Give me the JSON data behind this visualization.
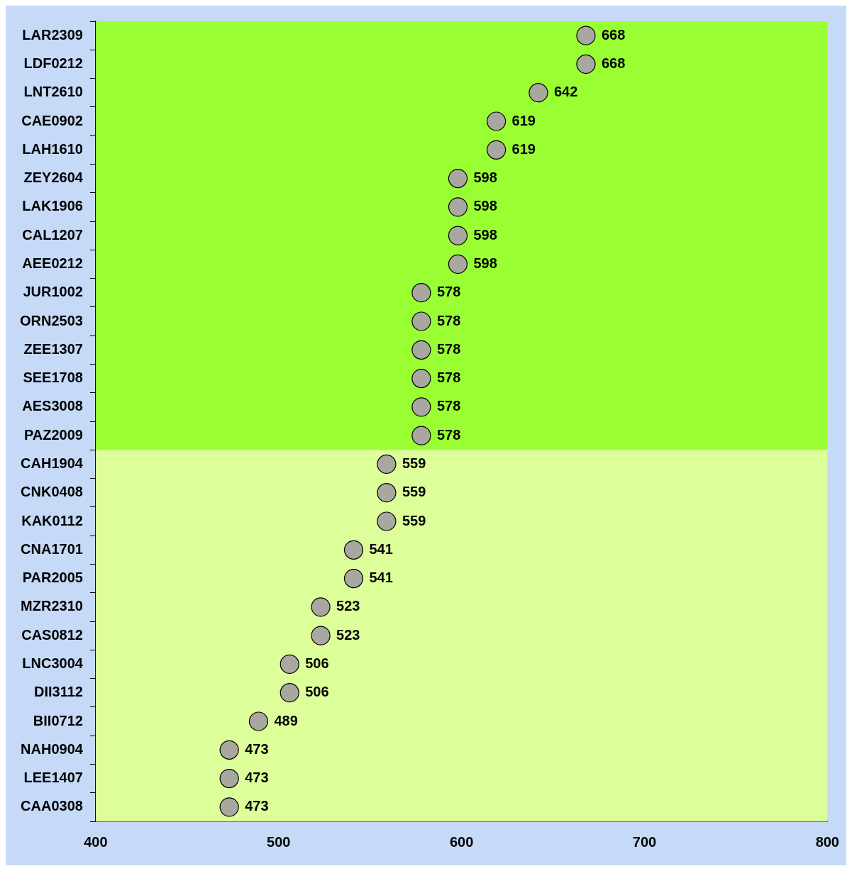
{
  "chart_data": {
    "type": "scatter",
    "orientation": "horizontal",
    "categories": [
      "LAR2309",
      "LDF0212",
      "LNT2610",
      "CAE0902",
      "LAH1610",
      "ZEY2604",
      "LAK1906",
      "CAL1207",
      "AEE0212",
      "JUR1002",
      "ORN2503",
      "ZEE1307",
      "SEE1708",
      "AES3008",
      "PAZ2009",
      "CAH1904",
      "CNK0408",
      "KAK0112",
      "CNA1701",
      "PAR2005",
      "MZR2310",
      "CAS0812",
      "LNC3004",
      "DII3112",
      "BII0712",
      "NAH0904",
      "LEE1407",
      "CAA0308"
    ],
    "values": [
      668,
      668,
      642,
      619,
      619,
      598,
      598,
      598,
      598,
      578,
      578,
      578,
      578,
      578,
      578,
      559,
      559,
      559,
      541,
      541,
      523,
      523,
      506,
      506,
      489,
      473,
      473,
      473
    ],
    "color": "#a8a8a0",
    "marker": "circle",
    "data_labels": true,
    "xlim": [
      400,
      800
    ],
    "xticks": [
      400,
      500,
      600,
      700,
      800
    ],
    "bands": [
      {
        "axis": "y",
        "from": "LAR2309",
        "to": "PAZ2009",
        "color": "#99ff33"
      },
      {
        "axis": "y",
        "from": "CAH1904",
        "to": "CAA0308",
        "color": "#ddff99"
      }
    ]
  }
}
